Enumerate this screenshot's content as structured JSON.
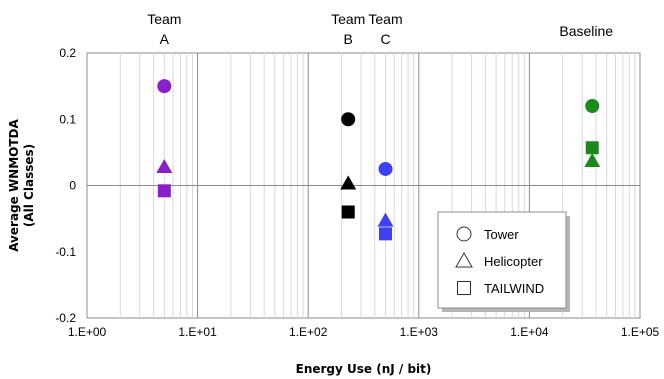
{
  "chart_data": {
    "type": "scatter",
    "x_scale": "log",
    "xlim": [
      1,
      100000
    ],
    "ylim": [
      -0.2,
      0.2
    ],
    "x_ticks": [
      1,
      10,
      100,
      1000,
      10000,
      100000
    ],
    "x_tick_labels": [
      "1.E+00",
      "1.E+01",
      "1.E+02",
      "1.E+03",
      "1.E+04",
      "1.E+05"
    ],
    "y_ticks": [
      -0.2,
      -0.1,
      0,
      0.1,
      0.2
    ],
    "y_tick_labels": [
      "-0.2",
      "-0.1",
      "0",
      "0.1",
      "0.2"
    ],
    "xlabel": "Energy Use (nJ / bit)",
    "ylabel": [
      "Average WNMOTDA",
      "(All Classes)"
    ],
    "grid": "log-minor-x",
    "legend": {
      "placement": "bottom-right",
      "entries": [
        {
          "label": "Tower",
          "marker": "circle"
        },
        {
          "label": "Helicopter",
          "marker": "triangle"
        },
        {
          "label": "TAILWIND",
          "marker": "square"
        }
      ]
    },
    "groups": [
      {
        "label_lines": [
          "Team",
          "A"
        ],
        "x": 5,
        "color": "#8a1fc9",
        "points": {
          "Tower": 0.15,
          "Helicopter": 0.028,
          "TAILWIND": -0.008
        }
      },
      {
        "label_lines": [
          "Team",
          "B"
        ],
        "x": 230,
        "color": "#000000",
        "points": {
          "Tower": 0.1,
          "Helicopter": 0.003,
          "TAILWIND": -0.04
        }
      },
      {
        "label_lines": [
          "Team",
          "C"
        ],
        "x": 500,
        "color": "#3f3ff5",
        "points": {
          "Tower": 0.025,
          "Helicopter": -0.053,
          "TAILWIND": -0.073
        }
      },
      {
        "label_lines": [
          "Baseline"
        ],
        "x": 37000,
        "color": "#1a8a1a",
        "points": {
          "Tower": 0.12,
          "Helicopter": 0.037,
          "TAILWIND": 0.057
        }
      }
    ]
  }
}
